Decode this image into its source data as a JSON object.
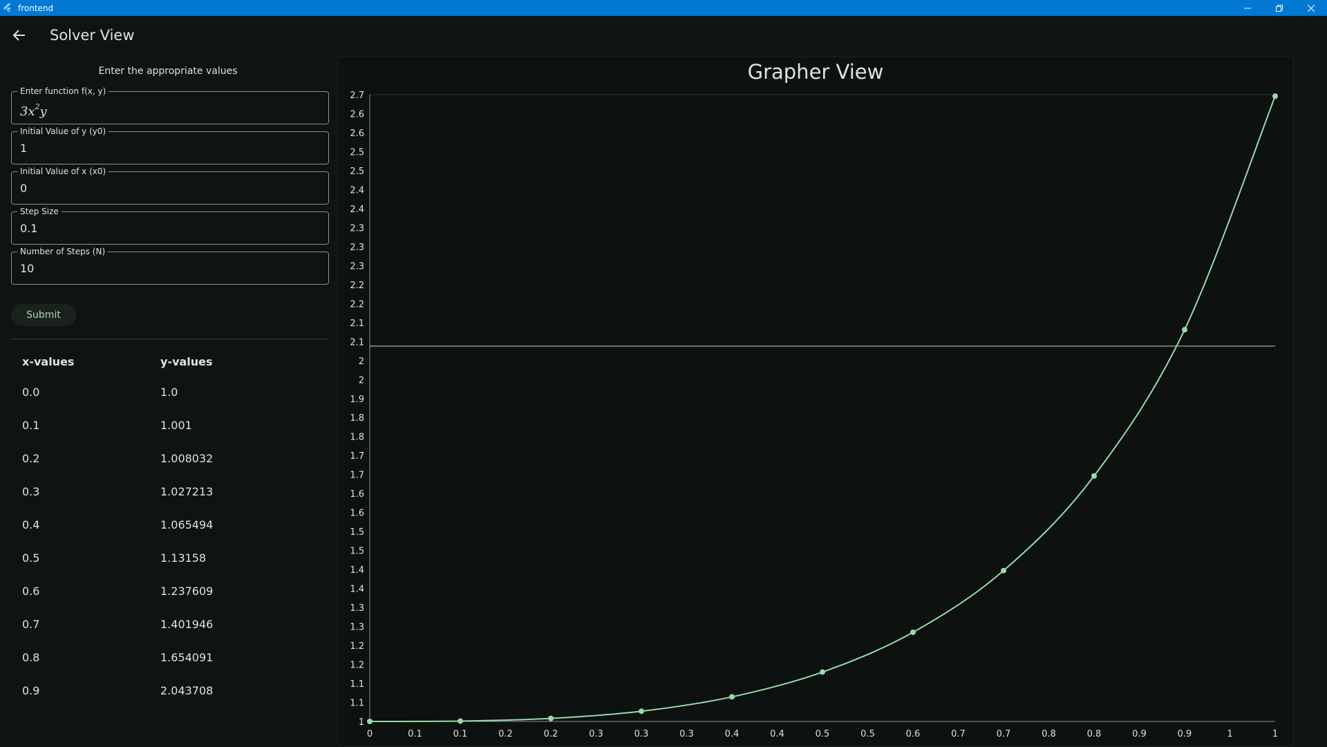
{
  "window": {
    "title": "frontend"
  },
  "appbar": {
    "title": "Solver View"
  },
  "form": {
    "heading": "Enter the appropriate values",
    "fields": [
      {
        "label": "Enter function f(x, y)",
        "base": "3x",
        "sup": "2",
        "tail": "y"
      },
      {
        "label": "Initial Value of y (y0)",
        "value": "1"
      },
      {
        "label": "Initial Value of x (x0)",
        "value": "0"
      },
      {
        "label": "Step Size",
        "value": "0.1"
      },
      {
        "label": "Number of Steps (N)",
        "value": "10"
      }
    ],
    "submit_label": "Submit"
  },
  "table": {
    "headers": [
      "x-values",
      "y-values"
    ],
    "rows": [
      [
        "0.0",
        "1.0"
      ],
      [
        "0.1",
        "1.001"
      ],
      [
        "0.2",
        "1.008032"
      ],
      [
        "0.3",
        "1.027213"
      ],
      [
        "0.4",
        "1.065494"
      ],
      [
        "0.5",
        "1.13158"
      ],
      [
        "0.6",
        "1.237609"
      ],
      [
        "0.7",
        "1.401946"
      ],
      [
        "0.8",
        "1.654091"
      ],
      [
        "0.9",
        "2.043708"
      ]
    ]
  },
  "grapher": {
    "title": "Grapher View"
  },
  "chart_data": {
    "type": "line",
    "x": [
      0,
      0.1,
      0.2,
      0.3,
      0.4,
      0.5,
      0.6,
      0.7,
      0.8,
      0.9,
      1.0
    ],
    "series": [
      {
        "values": [
          1.0,
          1.001,
          1.008032,
          1.027213,
          1.065494,
          1.13158,
          1.237609,
          1.401946,
          1.654091,
          2.043708,
          2.666
        ]
      }
    ],
    "xlim": [
      0,
      1.0
    ],
    "ylim": [
      1,
      2.67
    ],
    "x_tick_labels": [
      "0",
      "0.1",
      "0.1",
      "0.2",
      "0.2",
      "0.3",
      "0.3",
      "0.3",
      "0.4",
      "0.4",
      "0.5",
      "0.5",
      "0.6",
      "0.7",
      "0.7",
      "0.8",
      "0.8",
      "0.9",
      "0.9",
      "1",
      "1"
    ],
    "y_tick_labels": [
      "1",
      "1.1",
      "1.1",
      "1.2",
      "1.2",
      "1.3",
      "1.3",
      "1.4",
      "1.4",
      "1.5",
      "1.5",
      "1.6",
      "1.6",
      "1.7",
      "1.7",
      "1.8",
      "1.8",
      "1.9",
      "2",
      "2",
      "2.1",
      "2.1",
      "2.2",
      "2.2",
      "2.3",
      "2.3",
      "2.3",
      "2.4",
      "2.4",
      "2.5",
      "2.5",
      "2.6",
      "2.6",
      "2.7"
    ],
    "reference_line_y": 2,
    "colors": {
      "line": "#98dbab",
      "point": "#98dbab",
      "axis": "#8c9390",
      "label": "#e1e3df",
      "ref_line": "#c9cfcb"
    }
  }
}
